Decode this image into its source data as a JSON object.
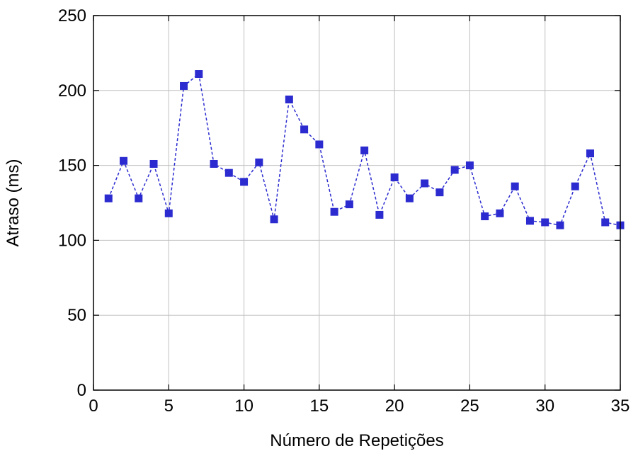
{
  "chart_data": {
    "type": "line",
    "title": "",
    "xlabel": "Número de Repetições",
    "ylabel": "Atraso (ms)",
    "xlim": [
      0,
      35
    ],
    "ylim": [
      0,
      250
    ],
    "xticks": [
      0,
      5,
      10,
      15,
      20,
      25,
      30,
      35
    ],
    "yticks": [
      0,
      50,
      100,
      150,
      200,
      250
    ],
    "grid": true,
    "legend": "none",
    "series": [
      {
        "color": "#2b2bd0",
        "line_style": "dashed",
        "marker": "square",
        "x": [
          1,
          2,
          3,
          4,
          5,
          6,
          7,
          8,
          9,
          10,
          11,
          12,
          13,
          14,
          15,
          16,
          17,
          18,
          19,
          20,
          21,
          22,
          23,
          24,
          25,
          26,
          27,
          28,
          29,
          30,
          31,
          32,
          33,
          34,
          35
        ],
        "y": [
          128,
          153,
          128,
          151,
          118,
          203,
          211,
          151,
          145,
          139,
          152,
          114,
          194,
          174,
          164,
          119,
          124,
          160,
          117,
          142,
          128,
          138,
          132,
          147,
          150,
          116,
          118,
          136,
          113,
          112,
          110,
          136,
          158,
          112,
          110
        ]
      }
    ]
  }
}
